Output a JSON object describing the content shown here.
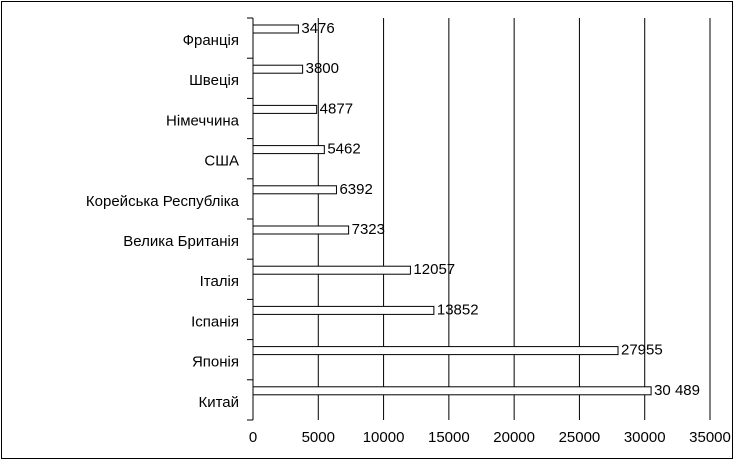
{
  "chart_data": {
    "type": "barh",
    "categories": [
      "Франція",
      "Швеція",
      "Німеччина",
      "США",
      "Корейська Республіка",
      "Велика Британія",
      "Італія",
      "Іспанія",
      "Японія",
      "Китай"
    ],
    "values": [
      3476,
      3800,
      4877,
      5462,
      6392,
      7323,
      12057,
      13852,
      27955,
      30489
    ],
    "value_labels": [
      "3476",
      "3800",
      "4877",
      "5462",
      "6392",
      "7323",
      "12057",
      "13852",
      "27955",
      "30 489"
    ],
    "color": "#ffffff",
    "xlim": [
      0,
      35000
    ],
    "xticks": [
      0,
      5000,
      10000,
      15000,
      20000,
      25000,
      30000,
      35000
    ],
    "grid": true
  }
}
